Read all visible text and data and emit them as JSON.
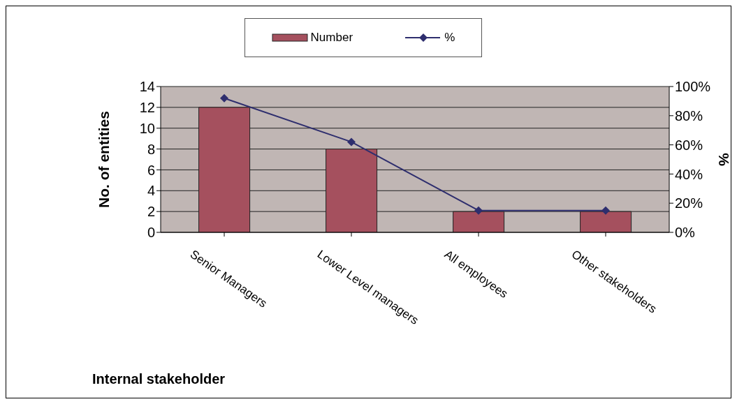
{
  "chart_data": {
    "type": "bar",
    "xlabel": "Internal stakeholder",
    "ylabel": "No. of entities",
    "y2label": "%",
    "categories": [
      "Senior Managers",
      "Lower Level managers",
      "All employees",
      "Other  stakeholders"
    ],
    "series": [
      {
        "name": "Number",
        "color": "#a5505e",
        "values": [
          12,
          8,
          2,
          2
        ]
      },
      {
        "name": "%",
        "type": "line",
        "axis": "y2",
        "color": "#2e2e6e",
        "marker": "diamond",
        "values": [
          92,
          62,
          15,
          15
        ]
      }
    ],
    "ylim": [
      0,
      14
    ],
    "yticks": [
      0,
      2,
      4,
      6,
      8,
      10,
      12,
      14
    ],
    "y2lim": [
      0,
      100
    ],
    "y2ticks": [
      {
        "value": 0,
        "label": "0%"
      },
      {
        "value": 20,
        "label": "20%"
      },
      {
        "value": 40,
        "label": "40%"
      },
      {
        "value": 60,
        "label": "60%"
      },
      {
        "value": 80,
        "label": "80%"
      },
      {
        "value": 100,
        "label": "100%"
      }
    ],
    "grid": "y",
    "legend": "top"
  }
}
